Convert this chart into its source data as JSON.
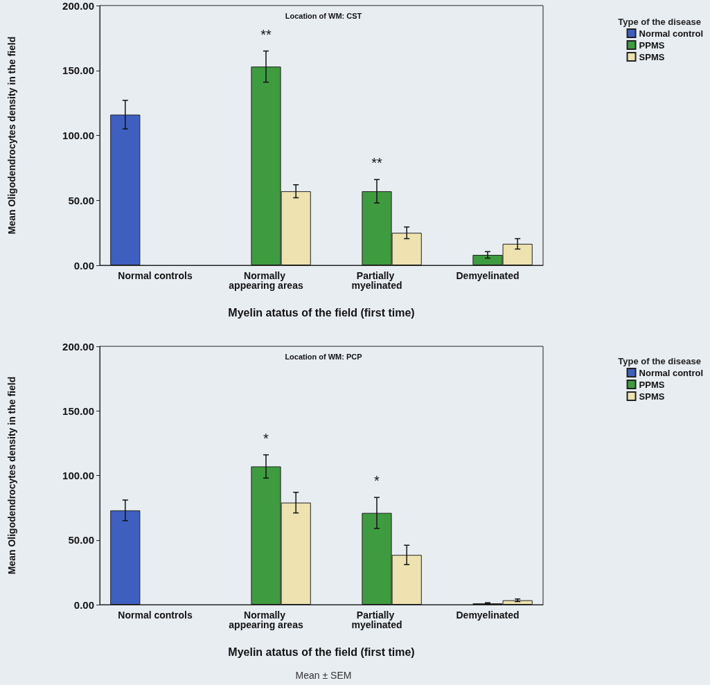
{
  "chart_data": [
    {
      "type": "bar",
      "title": "Location of WM: CST",
      "xlabel": "Myelin atatus of the field (first time)",
      "ylabel": "Mean Oligodendrocytes density in the field",
      "legend_title": "Type of the disease",
      "legend": "top right",
      "grid": false,
      "categories": [
        "Normal controls",
        "Normally appearing areas",
        "Partially myelinated",
        "Demyelinated"
      ],
      "series": [
        {
          "name": "Normal control",
          "color": "#3f5fc0",
          "values": [
            116,
            null,
            null,
            null
          ],
          "errors": [
            11,
            null,
            null,
            null
          ]
        },
        {
          "name": "PPMS",
          "color": "#3f9b3f",
          "values": [
            null,
            153,
            57,
            8
          ],
          "errors": [
            null,
            12,
            9,
            2.5
          ],
          "value_labels": [
            null,
            "**",
            "**",
            null
          ]
        },
        {
          "name": "SPMS",
          "color": "#ede2b0",
          "values": [
            null,
            57,
            25,
            16.5
          ],
          "errors": [
            null,
            5,
            4.5,
            4
          ]
        }
      ],
      "ylim": [
        0,
        200
      ],
      "yticks": [
        {
          "value": 0,
          "label": "0.00"
        },
        {
          "value": 50,
          "label": "50.00"
        },
        {
          "value": 100,
          "label": "100.00"
        },
        {
          "value": 150,
          "label": "150.00"
        },
        {
          "value": 200,
          "label": "200.00"
        }
      ]
    },
    {
      "type": "bar",
      "title": "Location of WM: PCP",
      "xlabel": "Myelin atatus of the field (first time)",
      "ylabel": "Mean Oligodendrocytes density in the field",
      "legend_title": "Type of the disease",
      "legend": "top right",
      "grid": false,
      "categories": [
        "Normal controls",
        "Normally appearing areas",
        "Partially myelinated",
        "Demyelinated"
      ],
      "series": [
        {
          "name": "Normal control",
          "color": "#3f5fc0",
          "values": [
            73,
            null,
            null,
            null
          ],
          "errors": [
            8,
            null,
            null,
            null
          ]
        },
        {
          "name": "PPMS",
          "color": "#3f9b3f",
          "values": [
            null,
            107,
            71,
            1
          ],
          "errors": [
            null,
            9,
            12,
            0.5
          ],
          "value_labels": [
            null,
            "*",
            "*",
            null
          ]
        },
        {
          "name": "SPMS",
          "color": "#ede2b0",
          "values": [
            null,
            79,
            38.5,
            3.4
          ],
          "errors": [
            null,
            8,
            7.5,
            1
          ]
        }
      ],
      "ylim": [
        0,
        200
      ],
      "yticks": [
        {
          "value": 0,
          "label": "0.00"
        },
        {
          "value": 50,
          "label": "50.00"
        },
        {
          "value": 100,
          "label": "100.00"
        },
        {
          "value": 150,
          "label": "150.00"
        },
        {
          "value": 200,
          "label": "200.00"
        }
      ],
      "annotations": [
        "Mean ± SEM"
      ]
    }
  ]
}
